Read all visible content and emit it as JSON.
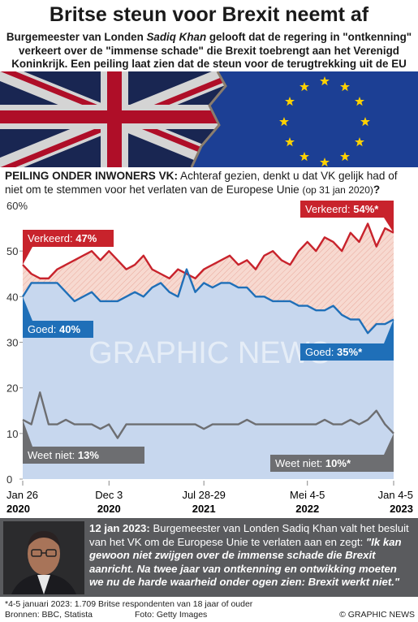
{
  "header": {
    "title": "Britse steun voor Brexit neemt af",
    "subtitle": {
      "before": "Burgemeester van Londen ",
      "name": "Sadiq Khan",
      "after": " gelooft dat de regering in \"ontkenning\" verkeert over de \"immense schade\" die Brexit toebrengt aan het Verenigd Koninkrijk. Een peiling laat zien dat de steun voor de terugtrekking uit de EU afneemt"
    }
  },
  "chart_data": {
    "type": "line",
    "question": {
      "lead": "PEILING ONDER INWONERS VK:",
      "text": " Achteraf gezien, denkt u dat VK gelijk had of niet om te stemmen voor het verlaten van de Europese Unie ",
      "note": "(op 31 jan 2020)",
      "end": "?"
    },
    "watermark": "GRAPHIC NEWS",
    "categories": [
      {
        "date": "Jan 26",
        "year": "2020"
      },
      null,
      null,
      null,
      null,
      null,
      null,
      null,
      null,
      null,
      {
        "date": "Dec 3",
        "year": "2020"
      },
      null,
      null,
      null,
      null,
      null,
      null,
      null,
      null,
      null,
      null,
      {
        "date": "Jul 28-29",
        "year": "2021"
      },
      null,
      null,
      null,
      null,
      null,
      null,
      null,
      null,
      null,
      null,
      null,
      {
        "date": "Mei 4-5",
        "year": "2022"
      },
      null,
      null,
      null,
      null,
      null,
      null,
      null,
      null,
      null,
      {
        "date": "Jan 4-5",
        "year": "2023"
      }
    ],
    "series": [
      {
        "name": "Verkeerd:",
        "color": "#c8232c",
        "values": [
          47,
          45,
          44,
          44,
          46,
          47,
          48,
          49,
          50,
          48,
          50,
          48,
          46,
          47,
          49,
          46,
          45,
          44,
          46,
          45,
          44,
          46,
          47,
          48,
          49,
          47,
          48,
          46,
          49,
          50,
          48,
          47,
          50,
          52,
          50,
          53,
          52,
          50,
          54,
          52,
          56,
          51,
          55,
          54
        ],
        "value_labels": [
          "47%",
          null,
          null,
          null,
          null,
          null,
          null,
          null,
          null,
          null,
          null,
          null,
          null,
          null,
          null,
          null,
          null,
          null,
          null,
          null,
          null,
          null,
          null,
          null,
          null,
          null,
          null,
          null,
          null,
          null,
          null,
          null,
          null,
          null,
          null,
          null,
          null,
          null,
          null,
          null,
          null,
          null,
          null,
          "54%*"
        ]
      },
      {
        "name": "Goed:",
        "color": "#1f6fb8",
        "values": [
          40,
          43,
          43,
          43,
          43,
          41,
          39,
          40,
          41,
          39,
          39,
          39,
          40,
          41,
          40,
          42,
          43,
          41,
          40,
          46,
          41,
          43,
          42,
          43,
          43,
          42,
          42,
          40,
          40,
          39,
          39,
          39,
          38,
          38,
          37,
          37,
          38,
          36,
          35,
          35,
          32,
          34,
          34,
          35
        ],
        "value_labels": [
          "40%",
          null,
          null,
          null,
          null,
          null,
          null,
          null,
          null,
          null,
          null,
          null,
          null,
          null,
          null,
          null,
          null,
          null,
          null,
          null,
          null,
          null,
          null,
          null,
          null,
          null,
          null,
          null,
          null,
          null,
          null,
          null,
          null,
          null,
          null,
          null,
          null,
          null,
          null,
          null,
          null,
          null,
          null,
          "35%*"
        ]
      },
      {
        "name": "Weet niet:",
        "color": "#6d6e71",
        "values": [
          13,
          12,
          19,
          12,
          12,
          13,
          12,
          12,
          12,
          11,
          12,
          9,
          12,
          12,
          12,
          12,
          12,
          12,
          12,
          12,
          12,
          11,
          12,
          12,
          12,
          12,
          13,
          12,
          12,
          12,
          12,
          12,
          12,
          12,
          12,
          13,
          12,
          12,
          13,
          12,
          13,
          15,
          12,
          10
        ],
        "value_labels": [
          "13%",
          null,
          null,
          null,
          null,
          null,
          null,
          null,
          null,
          null,
          null,
          null,
          null,
          null,
          null,
          null,
          null,
          null,
          null,
          null,
          null,
          null,
          null,
          null,
          null,
          null,
          null,
          null,
          null,
          null,
          null,
          null,
          null,
          null,
          null,
          null,
          null,
          null,
          null,
          null,
          null,
          null,
          null,
          "10%*"
        ]
      }
    ],
    "ylim": [
      0,
      60
    ],
    "yticks": [
      0,
      10,
      20,
      30,
      40,
      50,
      {
        "value": 60,
        "label": "60%"
      }
    ],
    "grid": false
  },
  "panel": {
    "date": "12 jan 2023:",
    "text": " Burgemeester van Londen Sadiq Khan valt het besluit van het VK om de Europese Unie te verlaten aan en zegt: ",
    "quote": "\"Ik kan gewoon niet zwijgen over de immense schade die Brexit aanricht. Na twee jaar van ontkenning en ontwikking moeten we nu de harde waarheid onder ogen zien: Brexit werkt niet.\""
  },
  "footer": {
    "footnote": "*4-5 januari 2023: 1.709 Britse respondenten van 18 jaar of ouder",
    "sources": "Bronnen: BBC, Statista",
    "photo": "Foto: Getty Images",
    "copyright": "© GRAPHIC NEWS"
  }
}
